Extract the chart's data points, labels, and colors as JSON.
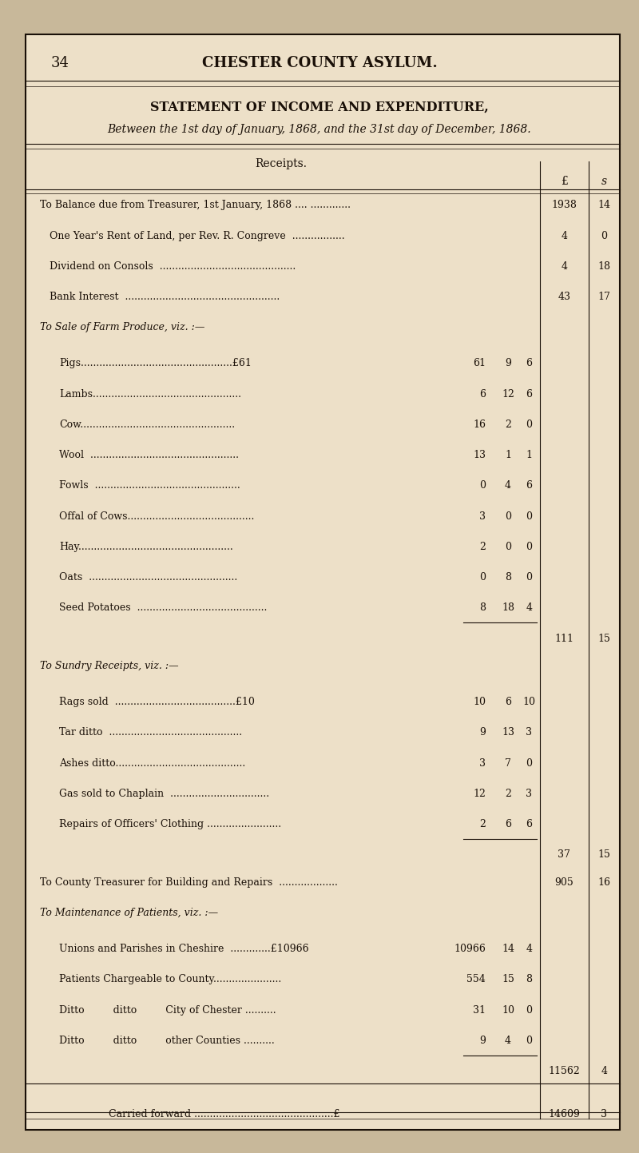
{
  "page_num": "34",
  "header": "CHESTER COUNTY ASYLUM.",
  "title": "STATEMENT OF INCOME AND EXPENDITURE,",
  "subtitle": "Between the 1st day of January, 1868, and the 31st day of December, 1868.",
  "section_receipts": "Receipts.",
  "bg_color": "#ede0c8",
  "page_bg": "#c8b89a",
  "text_color": "#1a1008",
  "rows": [
    {
      "indent": 0,
      "label": "To Balance due from Treasurer, 1st January, 1868 .... .............",
      "sub_pounds": "",
      "sub_shillings": "",
      "sub_pence": "",
      "pounds": "1938",
      "shillings": "14"
    },
    {
      "indent": 1,
      "label": "One Year's Rent of Land, per Rev. R. Congreve  .................",
      "sub_pounds": "",
      "sub_shillings": "",
      "sub_pence": "",
      "pounds": "4",
      "shillings": "0"
    },
    {
      "indent": 1,
      "label": "Dividend on Consols  ............................................",
      "sub_pounds": "",
      "sub_shillings": "",
      "sub_pence": "",
      "pounds": "4",
      "shillings": "18"
    },
    {
      "indent": 1,
      "label": "Bank Interest  ..................................................",
      "sub_pounds": "",
      "sub_shillings": "",
      "sub_pence": "",
      "pounds": "43",
      "shillings": "17"
    },
    {
      "indent": 0,
      "label": "To Sale of Farm Produce, viz. :—",
      "sub_pounds": "",
      "sub_shillings": "",
      "sub_pence": "",
      "pounds": "",
      "shillings": "",
      "italic": true
    },
    {
      "indent": 2,
      "label": "Pigs.................................................£61",
      "sub_pounds": "61",
      "sub_shillings": "9",
      "sub_pence": "6",
      "pounds": "",
      "shillings": ""
    },
    {
      "indent": 2,
      "label": "Lambs................................................",
      "sub_pounds": "6",
      "sub_shillings": "12",
      "sub_pence": "6",
      "pounds": "",
      "shillings": ""
    },
    {
      "indent": 2,
      "label": "Cow..................................................",
      "sub_pounds": "16",
      "sub_shillings": "2",
      "sub_pence": "0",
      "pounds": "",
      "shillings": ""
    },
    {
      "indent": 2,
      "label": "Wool  ................................................",
      "sub_pounds": "13",
      "sub_shillings": "1",
      "sub_pence": "1",
      "pounds": "",
      "shillings": ""
    },
    {
      "indent": 2,
      "label": "Fowls  ...............................................",
      "sub_pounds": "0",
      "sub_shillings": "4",
      "sub_pence": "6",
      "pounds": "",
      "shillings": ""
    },
    {
      "indent": 2,
      "label": "Offal of Cows.........................................",
      "sub_pounds": "3",
      "sub_shillings": "0",
      "sub_pence": "0",
      "pounds": "",
      "shillings": ""
    },
    {
      "indent": 2,
      "label": "Hay..................................................",
      "sub_pounds": "2",
      "sub_shillings": "0",
      "sub_pence": "0",
      "pounds": "",
      "shillings": ""
    },
    {
      "indent": 2,
      "label": "Oats  ................................................",
      "sub_pounds": "0",
      "sub_shillings": "8",
      "sub_pence": "0",
      "pounds": "",
      "shillings": ""
    },
    {
      "indent": 2,
      "label": "Seed Potatoes  ..........................................",
      "sub_pounds": "8",
      "sub_shillings": "18",
      "sub_pence": "4",
      "pounds": "",
      "shillings": "",
      "subtotal_after": true
    },
    {
      "indent": 0,
      "label": "",
      "sub_pounds": "",
      "sub_shillings": "",
      "sub_pence": "",
      "pounds": "111",
      "shillings": "15",
      "is_subtotal": true
    },
    {
      "indent": 0,
      "label": "To Sundry Receipts, viz. :—",
      "sub_pounds": "",
      "sub_shillings": "",
      "sub_pence": "",
      "pounds": "",
      "shillings": "",
      "italic": true
    },
    {
      "indent": 2,
      "label": "Rags sold  .......................................£10",
      "sub_pounds": "10",
      "sub_shillings": "6",
      "sub_pence": "10",
      "pounds": "",
      "shillings": ""
    },
    {
      "indent": 2,
      "label": "Tar ditto  ...........................................",
      "sub_pounds": "9",
      "sub_shillings": "13",
      "sub_pence": "3",
      "pounds": "",
      "shillings": ""
    },
    {
      "indent": 2,
      "label": "Ashes ditto..........................................",
      "sub_pounds": "3",
      "sub_shillings": "7",
      "sub_pence": "0",
      "pounds": "",
      "shillings": ""
    },
    {
      "indent": 2,
      "label": "Gas sold to Chaplain  ................................",
      "sub_pounds": "12",
      "sub_shillings": "2",
      "sub_pence": "3",
      "pounds": "",
      "shillings": ""
    },
    {
      "indent": 2,
      "label": "Repairs of Officers' Clothing ........................",
      "sub_pounds": "2",
      "sub_shillings": "6",
      "sub_pence": "6",
      "pounds": "",
      "shillings": "",
      "subtotal_after": true
    },
    {
      "indent": 0,
      "label": "",
      "sub_pounds": "",
      "sub_shillings": "",
      "sub_pence": "",
      "pounds": "37",
      "shillings": "15",
      "is_subtotal": true
    },
    {
      "indent": 0,
      "label": "To County Treasurer for Building and Repairs  ...................",
      "sub_pounds": "",
      "sub_shillings": "",
      "sub_pence": "",
      "pounds": "905",
      "shillings": "16"
    },
    {
      "indent": 0,
      "label": "To Maintenance of Patients, viz. :—",
      "sub_pounds": "",
      "sub_shillings": "",
      "sub_pence": "",
      "pounds": "",
      "shillings": "",
      "italic": true
    },
    {
      "indent": 2,
      "label": "Unions and Parishes in Cheshire  .............£10966",
      "sub_pounds": "10966",
      "sub_shillings": "14",
      "sub_pence": "4",
      "pounds": "",
      "shillings": ""
    },
    {
      "indent": 2,
      "label": "Patients Chargeable to County......................",
      "sub_pounds": "554",
      "sub_shillings": "15",
      "sub_pence": "8",
      "pounds": "",
      "shillings": ""
    },
    {
      "indent": 2,
      "label": "Ditto         ditto         City of Chester ..........",
      "sub_pounds": "31",
      "sub_shillings": "10",
      "sub_pence": "0",
      "pounds": "",
      "shillings": ""
    },
    {
      "indent": 2,
      "label": "Ditto         ditto         other Counties ..........",
      "sub_pounds": "9",
      "sub_shillings": "4",
      "sub_pence": "0",
      "pounds": "",
      "shillings": "",
      "subtotal_after": true
    },
    {
      "indent": 0,
      "label": "",
      "sub_pounds": "",
      "sub_shillings": "",
      "sub_pence": "",
      "pounds": "11562",
      "shillings": "4",
      "is_subtotal": true
    }
  ],
  "carried_forward": "Carried forward .............................................£",
  "carried_forward_pounds": "14609",
  "carried_forward_shillings": "3"
}
